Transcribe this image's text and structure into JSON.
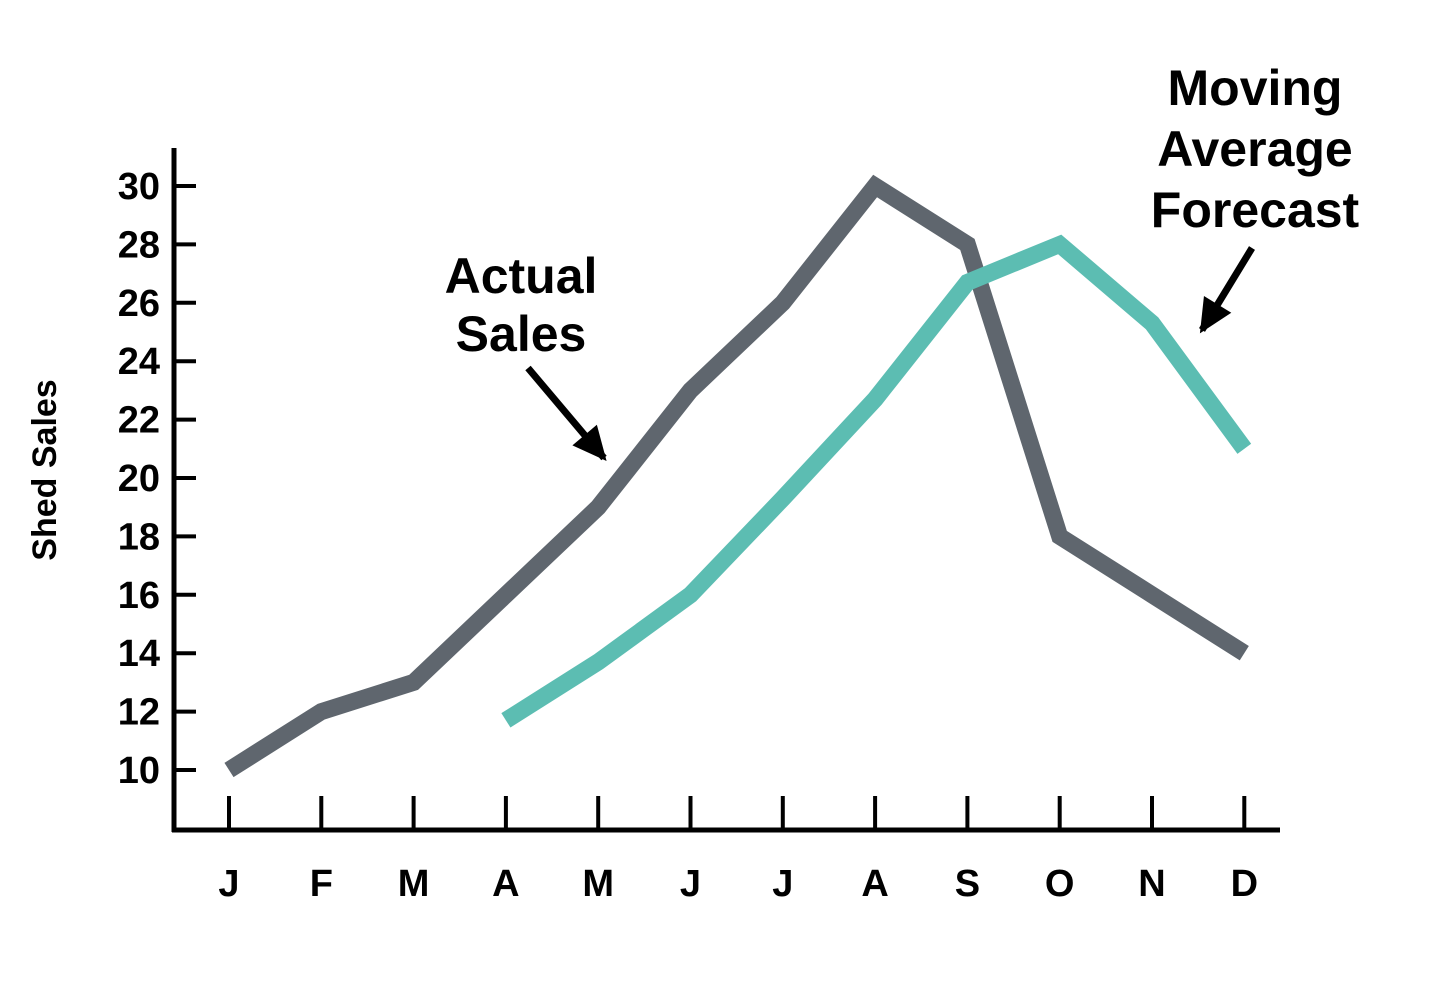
{
  "chart_data": {
    "type": "line",
    "title": "",
    "xlabel": "",
    "ylabel": "Shed Sales",
    "categories": [
      "J",
      "F",
      "M",
      "A",
      "M",
      "J",
      "J",
      "A",
      "S",
      "O",
      "N",
      "D"
    ],
    "ylim": [
      10,
      30
    ],
    "yticks": [
      10,
      12,
      14,
      16,
      18,
      20,
      22,
      24,
      26,
      28,
      30
    ],
    "grid": false,
    "series": [
      {
        "name": "Actual Sales",
        "color": "#5f666e",
        "values": [
          10,
          12,
          13,
          16,
          19,
          23,
          26,
          30,
          28,
          18,
          16,
          14
        ]
      },
      {
        "name": "Moving Average Forecast",
        "color": "#5cbdb2",
        "values": [
          null,
          null,
          null,
          11.7,
          13.7,
          16.0,
          19.3,
          22.7,
          26.7,
          28.0,
          25.3,
          21.0
        ]
      }
    ],
    "annotations": [
      {
        "lines": [
          "Actual",
          "Sales"
        ],
        "target_series": "Actual Sales"
      },
      {
        "lines": [
          "Moving",
          "Average",
          "Forecast"
        ],
        "target_series": "Moving Average Forecast"
      }
    ]
  }
}
